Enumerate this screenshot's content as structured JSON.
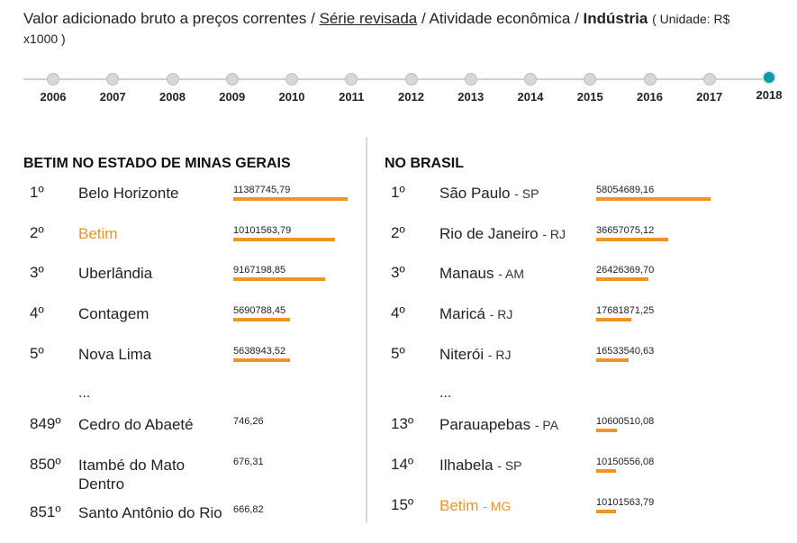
{
  "header": {
    "prefix": "Valor adicionado bruto a preços correntes /",
    "serie_link": "Série revisada",
    "middle": "/ Atividade econômica /",
    "activity": "Indústria",
    "unit": "( Unidade: R$ x1000 )"
  },
  "timeline": {
    "years": [
      "2006",
      "2007",
      "2008",
      "2009",
      "2010",
      "2011",
      "2012",
      "2013",
      "2014",
      "2015",
      "2016",
      "2017",
      "2018"
    ],
    "selected": "2018"
  },
  "left": {
    "title": "BETIM NO ESTADO DE MINAS GERAIS",
    "ellipsis": "...",
    "top": [
      {
        "rank": "1º",
        "name": "Belo Horizonte",
        "value": "11387745,79",
        "highlight": false
      },
      {
        "rank": "2º",
        "name": "Betim",
        "value": "10101563,79",
        "highlight": true
      },
      {
        "rank": "3º",
        "name": "Uberlândia",
        "value": "9167198,85",
        "highlight": false
      },
      {
        "rank": "4º",
        "name": "Contagem",
        "value": "5690788,45",
        "highlight": false
      },
      {
        "rank": "5º",
        "name": "Nova Lima",
        "value": "5638943,52",
        "highlight": false
      }
    ],
    "bottom": [
      {
        "rank": "849º",
        "name": "Cedro do Abaeté",
        "value": "746,26",
        "highlight": false
      },
      {
        "rank": "850º",
        "name": "Itambé do Mato Dentro",
        "value": "676,31",
        "highlight": false
      },
      {
        "rank": "851º",
        "name": "Santo Antônio do Rio",
        "value": "666,82",
        "highlight": false
      }
    ]
  },
  "right": {
    "title": "NO BRASIL",
    "ellipsis": "...",
    "top": [
      {
        "rank": "1º",
        "name": "São Paulo",
        "uf": "- SP",
        "value": "58054689,16",
        "highlight": false
      },
      {
        "rank": "2º",
        "name": "Rio de Janeiro",
        "uf": "- RJ",
        "value": "36657075,12",
        "highlight": false
      },
      {
        "rank": "3º",
        "name": "Manaus",
        "uf": "- AM",
        "value": "26426369,70",
        "highlight": false
      },
      {
        "rank": "4º",
        "name": "Maricá",
        "uf": "- RJ",
        "value": "17681871,25",
        "highlight": false
      },
      {
        "rank": "5º",
        "name": "Niterói",
        "uf": "- RJ",
        "value": "16533540,63",
        "highlight": false
      }
    ],
    "bottom": [
      {
        "rank": "13º",
        "name": "Parauapebas",
        "uf": "- PA",
        "value": "10600510,08",
        "highlight": false
      },
      {
        "rank": "14º",
        "name": "Ilhabela",
        "uf": "- SP",
        "value": "10150556,08",
        "highlight": false
      },
      {
        "rank": "15º",
        "name": "Betim",
        "uf": "- MG",
        "value": "10101563,79",
        "highlight": true
      }
    ]
  }
}
